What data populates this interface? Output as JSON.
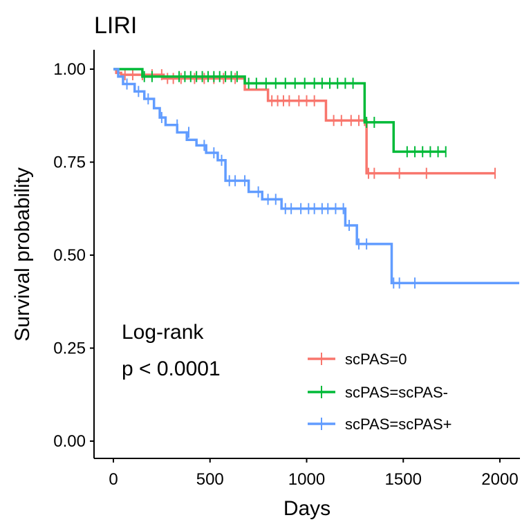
{
  "chart_data": {
    "type": "line",
    "title": "LIRI",
    "xlabel": "Days",
    "ylabel": "Survival probability",
    "xlim": [
      -100,
      2100
    ],
    "ylim": [
      -0.05,
      1.05
    ],
    "xticks": [
      0,
      500,
      1000,
      1500,
      2000
    ],
    "xtick_labels": [
      "0",
      "500",
      "1000",
      "1500",
      "2000"
    ],
    "yticks": [
      0,
      0.25,
      0.5,
      0.75,
      1.0
    ],
    "ytick_labels": [
      "0.00",
      "0.25",
      "0.50",
      "0.75",
      "1.00"
    ],
    "annotation": [
      "Log-rank",
      "p < 0.0001"
    ],
    "legend_position": "bottom-right",
    "grid": false,
    "series": [
      {
        "name": "scPAS=0",
        "color": "#F8766D",
        "steps": [
          [
            0,
            1.0
          ],
          [
            15,
            0.99
          ],
          [
            40,
            0.985
          ],
          [
            260,
            0.975
          ],
          [
            680,
            0.945
          ],
          [
            800,
            0.915
          ],
          [
            1100,
            0.862
          ],
          [
            1310,
            0.72
          ],
          [
            1975,
            0.72
          ]
        ],
        "censored": [
          [
            60,
            0.985
          ],
          [
            100,
            0.985
          ],
          [
            150,
            0.985
          ],
          [
            200,
            0.985
          ],
          [
            250,
            0.985
          ],
          [
            280,
            0.975
          ],
          [
            310,
            0.975
          ],
          [
            350,
            0.975
          ],
          [
            420,
            0.975
          ],
          [
            470,
            0.975
          ],
          [
            520,
            0.975
          ],
          [
            570,
            0.975
          ],
          [
            630,
            0.975
          ],
          [
            820,
            0.915
          ],
          [
            850,
            0.915
          ],
          [
            880,
            0.915
          ],
          [
            910,
            0.915
          ],
          [
            960,
            0.915
          ],
          [
            1000,
            0.915
          ],
          [
            1040,
            0.915
          ],
          [
            1140,
            0.862
          ],
          [
            1180,
            0.862
          ],
          [
            1230,
            0.862
          ],
          [
            1270,
            0.862
          ],
          [
            1300,
            0.862
          ],
          [
            1320,
            0.72
          ],
          [
            1350,
            0.72
          ],
          [
            1480,
            0.72
          ],
          [
            1620,
            0.72
          ],
          [
            1975,
            0.72
          ]
        ]
      },
      {
        "name": "scPAS=scPAS-",
        "color": "#00BA38",
        "steps": [
          [
            0,
            1.0
          ],
          [
            150,
            0.98
          ],
          [
            680,
            0.962
          ],
          [
            1300,
            0.857
          ],
          [
            1450,
            0.778
          ],
          [
            1720,
            0.778
          ]
        ],
        "censored": [
          [
            160,
            0.98
          ],
          [
            200,
            0.98
          ],
          [
            340,
            0.98
          ],
          [
            370,
            0.98
          ],
          [
            400,
            0.98
          ],
          [
            430,
            0.98
          ],
          [
            460,
            0.98
          ],
          [
            490,
            0.98
          ],
          [
            520,
            0.98
          ],
          [
            550,
            0.98
          ],
          [
            580,
            0.98
          ],
          [
            610,
            0.98
          ],
          [
            640,
            0.98
          ],
          [
            700,
            0.962
          ],
          [
            740,
            0.962
          ],
          [
            790,
            0.962
          ],
          [
            840,
            0.962
          ],
          [
            890,
            0.962
          ],
          [
            940,
            0.962
          ],
          [
            990,
            0.962
          ],
          [
            1040,
            0.962
          ],
          [
            1080,
            0.962
          ],
          [
            1120,
            0.962
          ],
          [
            1160,
            0.962
          ],
          [
            1200,
            0.962
          ],
          [
            1240,
            0.962
          ],
          [
            1310,
            0.857
          ],
          [
            1350,
            0.857
          ],
          [
            1520,
            0.778
          ],
          [
            1560,
            0.778
          ],
          [
            1600,
            0.778
          ],
          [
            1640,
            0.778
          ],
          [
            1680,
            0.778
          ],
          [
            1720,
            0.778
          ]
        ]
      },
      {
        "name": "scPAS=scPAS+",
        "color": "#619CFF",
        "steps": [
          [
            0,
            1.0
          ],
          [
            25,
            0.98
          ],
          [
            50,
            0.96
          ],
          [
            110,
            0.94
          ],
          [
            160,
            0.92
          ],
          [
            210,
            0.895
          ],
          [
            240,
            0.87
          ],
          [
            270,
            0.85
          ],
          [
            330,
            0.83
          ],
          [
            380,
            0.81
          ],
          [
            430,
            0.795
          ],
          [
            480,
            0.775
          ],
          [
            540,
            0.755
          ],
          [
            580,
            0.7
          ],
          [
            700,
            0.67
          ],
          [
            770,
            0.65
          ],
          [
            870,
            0.625
          ],
          [
            1200,
            0.58
          ],
          [
            1260,
            0.53
          ],
          [
            1440,
            0.425
          ],
          [
            2100,
            0.425
          ]
        ],
        "censored": [
          [
            70,
            0.96
          ],
          [
            130,
            0.94
          ],
          [
            180,
            0.92
          ],
          [
            250,
            0.87
          ],
          [
            330,
            0.85
          ],
          [
            390,
            0.83
          ],
          [
            470,
            0.795
          ],
          [
            520,
            0.775
          ],
          [
            560,
            0.755
          ],
          [
            600,
            0.7
          ],
          [
            630,
            0.7
          ],
          [
            680,
            0.7
          ],
          [
            750,
            0.67
          ],
          [
            800,
            0.65
          ],
          [
            840,
            0.65
          ],
          [
            890,
            0.625
          ],
          [
            920,
            0.625
          ],
          [
            970,
            0.625
          ],
          [
            1010,
            0.625
          ],
          [
            1040,
            0.625
          ],
          [
            1080,
            0.625
          ],
          [
            1110,
            0.625
          ],
          [
            1150,
            0.625
          ],
          [
            1190,
            0.625
          ],
          [
            1220,
            0.58
          ],
          [
            1270,
            0.53
          ],
          [
            1310,
            0.53
          ],
          [
            1450,
            0.425
          ],
          [
            1480,
            0.425
          ],
          [
            1560,
            0.425
          ]
        ]
      }
    ]
  }
}
